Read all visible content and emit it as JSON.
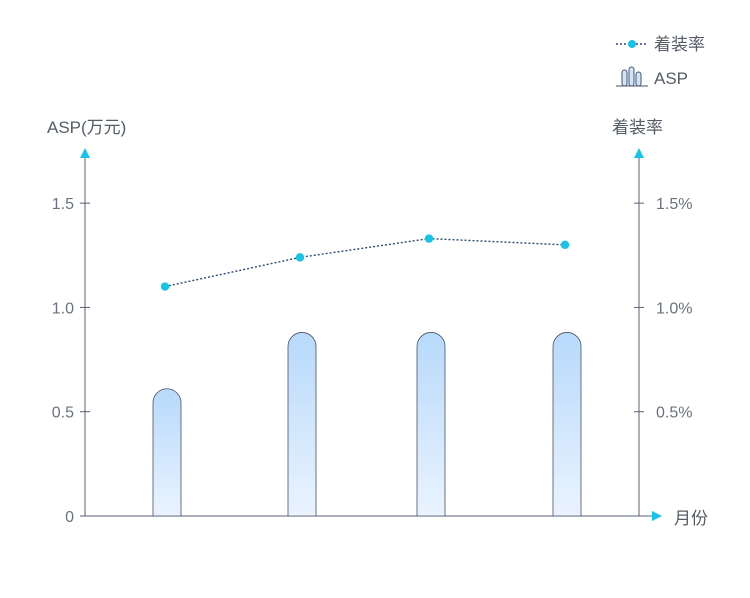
{
  "chart_data": {
    "type": "bar",
    "categories": [
      "",
      "",
      "",
      ""
    ],
    "xlabel": "月份",
    "series": [
      {
        "name": "ASP",
        "type": "bar",
        "axis": "left",
        "values": [
          0.61,
          0.88,
          0.88,
          0.88
        ]
      },
      {
        "name": "着装率",
        "type": "line",
        "axis": "right",
        "values": [
          1.1,
          1.24,
          1.33,
          1.3
        ]
      }
    ],
    "y_left": {
      "label": "ASP(万元)",
      "ylim": [
        0,
        1.75
      ],
      "ticks": [
        0,
        0.5,
        1.0,
        1.5
      ],
      "tick_labels": [
        "0",
        "0.5",
        "1.0",
        "1.5"
      ]
    },
    "y_right": {
      "label": "着装率",
      "unit": "%",
      "ylim": [
        0,
        1.75
      ],
      "ticks": [
        0.5,
        1.0,
        1.5
      ],
      "tick_labels": [
        "0.5%",
        "1.0%",
        "1.5%"
      ]
    },
    "legend": {
      "position": "top-right",
      "items": [
        {
          "label": "着装率",
          "symbol": "dotted-line-marker"
        },
        {
          "label": "ASP",
          "symbol": "bar-icon"
        }
      ]
    },
    "grid": false,
    "colors": {
      "bar_fill_top": "#b7d9fb",
      "bar_fill_bottom": "#eaf3fe",
      "bar_stroke": "#4a5266",
      "line": "#2b4a78",
      "marker": "#17c3e6",
      "axis": "#5a6070",
      "arrow": "#17c3e6"
    }
  }
}
